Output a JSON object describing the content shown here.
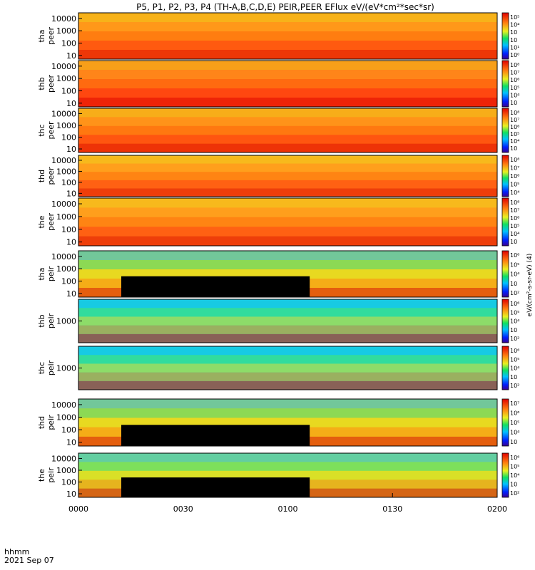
{
  "title": "P5, P1, P2, P3, P4 (TH-A,B,C,D,E) PEIR,PEER EFlux eV/(eV*cm²*sec*sr)",
  "colorbar_label_electron": "eV/(cm²-s-sr-eV)  (4)",
  "colorbar_label_ion": "eV/(cm²-s-sr-eV)",
  "bottom_axis": {
    "label_line1": "hhmm",
    "label_line2": "2021 Sep 07",
    "ticks": [
      "0000",
      "0030",
      "0100",
      "0130",
      "0200"
    ]
  },
  "chart_data": [
    {
      "type": "heatmap",
      "probe": "tha",
      "species": "peer",
      "ylabel": "tha peer",
      "yticks": [
        "10",
        "100",
        "1000",
        "10000"
      ],
      "x_range": [
        "0000",
        "0200"
      ],
      "cbar_ticks": [
        "10⁵",
        "10⁴",
        "10⁳",
        "10⁲",
        "10¹",
        "10⁰"
      ],
      "base_color": "#ff7a10"
    },
    {
      "type": "heatmap",
      "probe": "thb",
      "species": "peer",
      "ylabel": "thb peer",
      "yticks": [
        "10",
        "100",
        "1000",
        "10000"
      ],
      "x_range": [
        "0000",
        "0200"
      ],
      "cbar_ticks": [
        "10⁸",
        "10⁷",
        "10⁶",
        "10⁵",
        "10⁴",
        "10⁳"
      ],
      "base_color": "#ff5010"
    },
    {
      "type": "heatmap",
      "probe": "thc",
      "species": "peer",
      "ylabel": "thc peer",
      "yticks": [
        "10",
        "100",
        "1000",
        "10000"
      ],
      "x_range": [
        "0000",
        "0200"
      ],
      "cbar_ticks": [
        "10⁸",
        "10⁷",
        "10⁶",
        "10⁵",
        "10⁴",
        "10⁳"
      ],
      "base_color": "#ff7010"
    },
    {
      "type": "heatmap",
      "probe": "thd",
      "species": "peer",
      "ylabel": "thd peer",
      "yticks": [
        "10",
        "100",
        "1000",
        "10000"
      ],
      "x_range": [
        "0000",
        "0200"
      ],
      "cbar_ticks": [
        "10⁸",
        "10⁷",
        "10⁶",
        "10⁵",
        "10⁴"
      ],
      "base_color": "#ff8a18"
    },
    {
      "type": "heatmap",
      "probe": "the",
      "species": "peer",
      "ylabel": "the peer",
      "yticks": [
        "10",
        "100",
        "1000",
        "10000"
      ],
      "x_range": [
        "0000",
        "0200"
      ],
      "cbar_ticks": [
        "10⁸",
        "10⁷",
        "10⁶",
        "10⁵",
        "10⁴",
        "10⁳"
      ],
      "base_color": "#ff8a18"
    },
    {
      "type": "heatmap",
      "probe": "tha",
      "species": "peir",
      "ylabel": "tha peir",
      "yticks": [
        "10",
        "100",
        "1000",
        "10000"
      ],
      "x_range": [
        "0000",
        "0200"
      ],
      "cbar_ticks": [
        "10⁶",
        "10⁵",
        "10⁴",
        "10⁳",
        "10²"
      ],
      "base_color": "#e8d020"
    },
    {
      "type": "heatmap",
      "probe": "thb",
      "species": "peir",
      "ylabel": "thb peir",
      "yticks": [
        "1000"
      ],
      "x_range": [
        "0000",
        "0200"
      ],
      "cbar_ticks": [
        "10⁶",
        "10⁵",
        "10⁴",
        "10⁳",
        "10²"
      ],
      "base_color": "#20d8c0"
    },
    {
      "type": "heatmap",
      "probe": "thc",
      "species": "peir",
      "ylabel": "thc peir",
      "yticks": [
        "1000"
      ],
      "x_range": [
        "0000",
        "0200"
      ],
      "cbar_ticks": [
        "10⁶",
        "10⁵",
        "10⁴",
        "10⁳",
        "10²"
      ],
      "base_color": "#20d8c0"
    },
    {
      "type": "heatmap",
      "probe": "thd",
      "species": "peir",
      "ylabel": "thd peir",
      "yticks": [
        "10",
        "100",
        "1000",
        "10000"
      ],
      "x_range": [
        "0000",
        "0200"
      ],
      "cbar_ticks": [
        "10⁷",
        "10⁶",
        "10⁵",
        "10⁴",
        "10⁳"
      ],
      "base_color": "#e8d020"
    },
    {
      "type": "heatmap",
      "probe": "the",
      "species": "peir",
      "ylabel": "the peir",
      "yticks": [
        "10",
        "100",
        "1000",
        "10000"
      ],
      "x_range": [
        "0000",
        "0200"
      ],
      "cbar_ticks": [
        "10⁶",
        "10⁵",
        "10⁴",
        "10⁳",
        "10²"
      ],
      "base_color": "#c8e030"
    }
  ]
}
